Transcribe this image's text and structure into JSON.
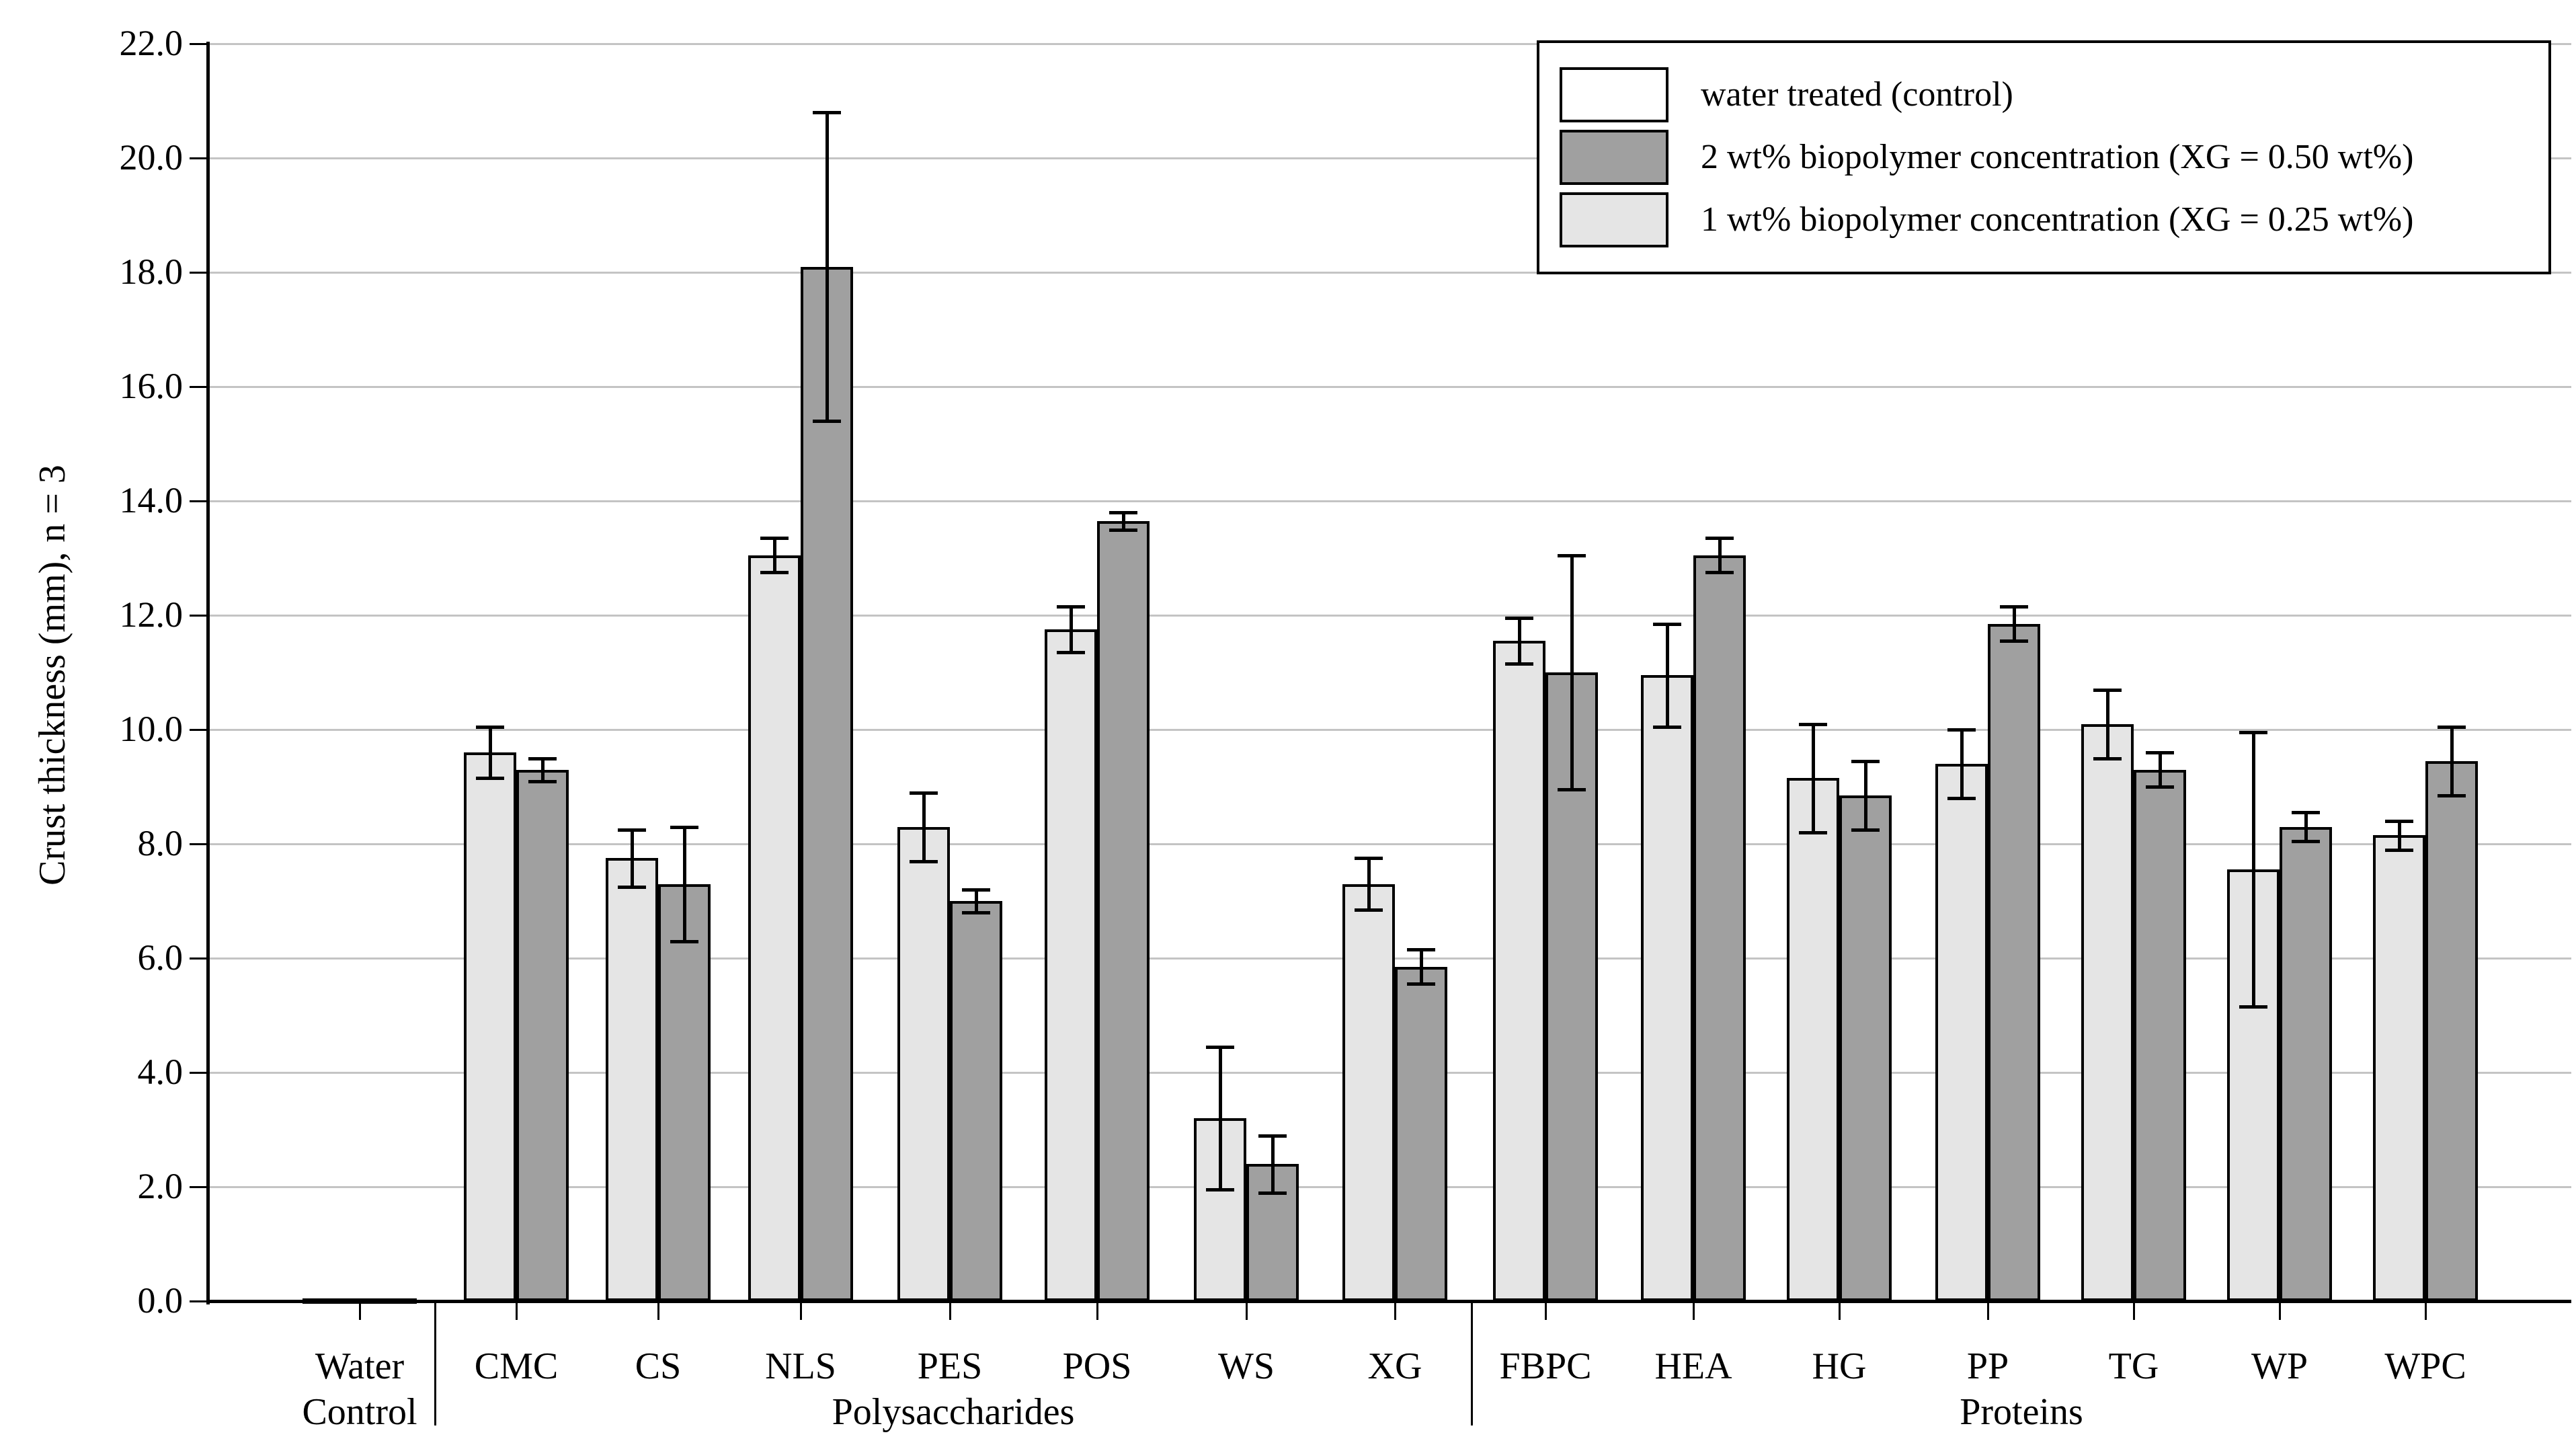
{
  "chart_data": {
    "type": "bar",
    "title": "",
    "xlabel": "",
    "ylabel": "Crust thickness (mm), n = 3",
    "ylim": [
      0,
      22
    ],
    "ytick_step": 2,
    "ytick_labels": [
      "0.0",
      "2.0",
      "4.0",
      "6.0",
      "8.0",
      "10.0",
      "12.0",
      "14.0",
      "16.0",
      "18.0",
      "20.0",
      "22.0"
    ],
    "grid": "horizontal",
    "legend_position": "top-right",
    "categories": [
      "Water Control",
      "CMC",
      "CS",
      "NLS",
      "PES",
      "POS",
      "WS",
      "XG",
      "FBPC",
      "HEA",
      "HG",
      "PP",
      "TG",
      "WP",
      "WPC"
    ],
    "axis_groups": [
      {
        "label": "Water Control",
        "categories": [
          "Water Control"
        ]
      },
      {
        "label": "Polysaccharides",
        "categories": [
          "CMC",
          "CS",
          "NLS",
          "PES",
          "POS",
          "WS",
          "XG"
        ]
      },
      {
        "label": "Proteins",
        "categories": [
          "FBPC",
          "HEA",
          "HG",
          "PP",
          "TG",
          "WP",
          "WPC"
        ]
      }
    ],
    "series": [
      {
        "name": "water treated (control)",
        "color": "#ffffff",
        "points": [
          {
            "category": "Water Control",
            "value": 0.05,
            "error": 0
          }
        ]
      },
      {
        "name": "1 wt% biopolymer concentration (XG = 0.25 wt%)",
        "color": "#e5e5e5",
        "points": [
          {
            "category": "CMC",
            "value": 9.6,
            "error": 0.45
          },
          {
            "category": "CS",
            "value": 7.75,
            "error": 0.5
          },
          {
            "category": "NLS",
            "value": 13.05,
            "error": 0.3
          },
          {
            "category": "PES",
            "value": 8.3,
            "error": 0.6
          },
          {
            "category": "POS",
            "value": 11.75,
            "error": 0.4
          },
          {
            "category": "WS",
            "value": 3.2,
            "error": 1.25
          },
          {
            "category": "XG",
            "value": 7.3,
            "error": 0.45
          },
          {
            "category": "FBPC",
            "value": 11.55,
            "error": 0.4
          },
          {
            "category": "HEA",
            "value": 10.95,
            "error": 0.9
          },
          {
            "category": "HG",
            "value": 9.15,
            "error": 0.95
          },
          {
            "category": "PP",
            "value": 9.4,
            "error": 0.6
          },
          {
            "category": "TG",
            "value": 10.1,
            "error": 0.6
          },
          {
            "category": "WP",
            "value": 7.55,
            "error": 2.4
          },
          {
            "category": "WPC",
            "value": 8.15,
            "error": 0.25
          }
        ]
      },
      {
        "name": "2 wt% biopolymer concentration (XG = 0.50 wt%)",
        "color": "#a0a0a0",
        "points": [
          {
            "category": "CMC",
            "value": 9.3,
            "error": 0.2
          },
          {
            "category": "CS",
            "value": 7.3,
            "error": 1.0
          },
          {
            "category": "NLS",
            "value": 18.1,
            "error": 2.7
          },
          {
            "category": "PES",
            "value": 7.0,
            "error": 0.2
          },
          {
            "category": "POS",
            "value": 13.65,
            "error": 0.15
          },
          {
            "category": "WS",
            "value": 2.4,
            "error": 0.5
          },
          {
            "category": "XG",
            "value": 5.85,
            "error": 0.3
          },
          {
            "category": "FBPC",
            "value": 11.0,
            "error": 2.05
          },
          {
            "category": "HEA",
            "value": 13.05,
            "error": 0.3
          },
          {
            "category": "HG",
            "value": 8.85,
            "error": 0.6
          },
          {
            "category": "PP",
            "value": 11.85,
            "error": 0.3
          },
          {
            "category": "TG",
            "value": 9.3,
            "error": 0.3
          },
          {
            "category": "WP",
            "value": 8.3,
            "error": 0.25
          },
          {
            "category": "WPC",
            "value": 9.45,
            "error": 0.6
          }
        ]
      }
    ],
    "legend_entries": [
      {
        "label": "water treated (control)",
        "color": "#ffffff"
      },
      {
        "label": "2 wt% biopolymer concentration (XG = 0.50 wt%)",
        "color": "#a0a0a0"
      },
      {
        "label": "1 wt% biopolymer concentration (XG = 0.25 wt%)",
        "color": "#e5e5e5"
      }
    ]
  }
}
